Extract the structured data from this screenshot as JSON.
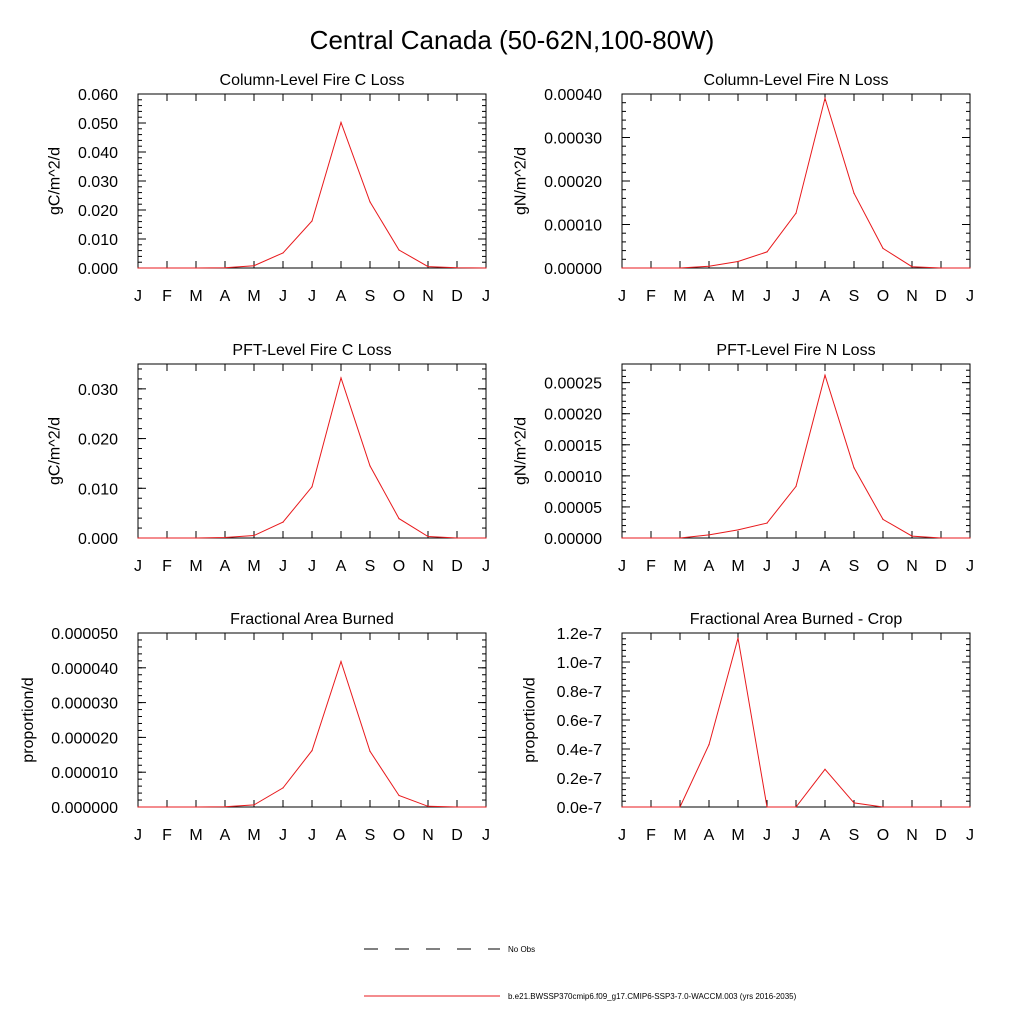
{
  "figure_title": "Central Canada (50-62N,100-80W)",
  "colors": {
    "model_line": "#e8191c",
    "obs_line": "#000000",
    "axis": "#000000"
  },
  "legend": {
    "entries": [
      {
        "label": "No Obs",
        "style": "dashed",
        "color": "#000000"
      },
      {
        "label": "b.e21.BWSSP370cmip6.f09_g17.CMIP6-SSP3-7.0-WACCM.003 (yrs 2016-2035)",
        "style": "solid",
        "color": "#e8191c"
      }
    ]
  },
  "chart_data": [
    {
      "type": "line",
      "title": "Column-Level Fire C Loss",
      "ylabel": "gC/m^2/d",
      "xlabel": "",
      "categories": [
        "J",
        "F",
        "M",
        "A",
        "M",
        "J",
        "J",
        "A",
        "S",
        "O",
        "N",
        "D",
        "J"
      ],
      "ylim": [
        0,
        0.06
      ],
      "yticks": [
        0,
        0.01,
        0.02,
        0.03,
        0.04,
        0.05,
        0.06
      ],
      "ytick_labels": [
        "0.000",
        "0.010",
        "0.020",
        "0.030",
        "0.040",
        "0.050",
        "0.060"
      ],
      "series": [
        {
          "values": [
            0.0,
            0.0,
            0.0,
            0.0001,
            0.0008,
            0.0052,
            0.0162,
            0.0502,
            0.0228,
            0.0062,
            0.0005,
            0.0001,
            0.0
          ]
        }
      ]
    },
    {
      "type": "line",
      "title": "Column-Level Fire N Loss",
      "ylabel": "gN/m^2/d",
      "xlabel": "",
      "categories": [
        "J",
        "F",
        "M",
        "A",
        "M",
        "J",
        "J",
        "A",
        "S",
        "O",
        "N",
        "D",
        "J"
      ],
      "ylim": [
        0,
        0.0004
      ],
      "yticks": [
        0,
        0.0001,
        0.0002,
        0.0003,
        0.0004
      ],
      "ytick_labels": [
        "0.00000",
        "0.00010",
        "0.00020",
        "0.00030",
        "0.00040"
      ],
      "series": [
        {
          "values": [
            0.0,
            0.0,
            0.0,
            4e-06,
            1.5e-05,
            3.7e-05,
            0.000126,
            0.00039,
            0.000172,
            4.5e-05,
            3e-06,
            0.0,
            0.0
          ]
        }
      ]
    },
    {
      "type": "line",
      "title": "PFT-Level Fire C Loss",
      "ylabel": "gC/m^2/d",
      "xlabel": "",
      "categories": [
        "J",
        "F",
        "M",
        "A",
        "M",
        "J",
        "J",
        "A",
        "S",
        "O",
        "N",
        "D",
        "J"
      ],
      "ylim": [
        0,
        0.035
      ],
      "yticks": [
        0,
        0.01,
        0.02,
        0.03
      ],
      "ytick_labels": [
        "0.000",
        "0.010",
        "0.020",
        "0.030"
      ],
      "series": [
        {
          "values": [
            0.0,
            0.0,
            0.0,
            0.0001,
            0.0005,
            0.0032,
            0.0103,
            0.0322,
            0.0145,
            0.0039,
            0.0003,
            0.0,
            0.0
          ]
        }
      ]
    },
    {
      "type": "line",
      "title": "PFT-Level Fire N Loss",
      "ylabel": "gN/m^2/d",
      "xlabel": "",
      "categories": [
        "J",
        "F",
        "M",
        "A",
        "M",
        "J",
        "J",
        "A",
        "S",
        "O",
        "N",
        "D",
        "J"
      ],
      "ylim": [
        0,
        0.00028
      ],
      "yticks": [
        0,
        5e-05,
        0.0001,
        0.00015,
        0.0002,
        0.00025
      ],
      "ytick_labels": [
        "0.00000",
        "0.00005",
        "0.00010",
        "0.00015",
        "0.00020",
        "0.00025"
      ],
      "series": [
        {
          "values": [
            0.0,
            0.0,
            0.0,
            5e-06,
            1.3e-05,
            2.4e-05,
            8.3e-05,
            0.000262,
            0.000113,
            3e-05,
            3e-06,
            0.0,
            0.0
          ]
        }
      ]
    },
    {
      "type": "line",
      "title": "Fractional Area Burned",
      "ylabel": "proportion/d",
      "xlabel": "",
      "categories": [
        "J",
        "F",
        "M",
        "A",
        "M",
        "J",
        "J",
        "A",
        "S",
        "O",
        "N",
        "D",
        "J"
      ],
      "ylim": [
        0,
        5e-05
      ],
      "yticks": [
        0,
        1e-05,
        2e-05,
        3e-05,
        4e-05,
        5e-05
      ],
      "ytick_labels": [
        "0.000000",
        "0.000010",
        "0.000020",
        "0.000030",
        "0.000040",
        "0.000050"
      ],
      "series": [
        {
          "values": [
            0.0,
            0.0,
            0.0,
            1e-07,
            6e-07,
            5.5e-06,
            1.62e-05,
            4.18e-05,
            1.6e-05,
            3.3e-06,
            2e-07,
            0.0,
            0.0
          ]
        }
      ]
    },
    {
      "type": "line",
      "title": "Fractional Area Burned - Crop",
      "ylabel": "proportion/d",
      "xlabel": "",
      "categories": [
        "J",
        "F",
        "M",
        "A",
        "M",
        "J",
        "J",
        "A",
        "S",
        "O",
        "N",
        "D",
        "J"
      ],
      "ylim": [
        0,
        1.2e-07
      ],
      "yticks": [
        0,
        2e-08,
        4e-08,
        6e-08,
        8e-08,
        1e-07,
        1.2e-07
      ],
      "ytick_labels": [
        "0.0e-7",
        "0.2e-7",
        "0.4e-7",
        "0.6e-7",
        "0.8e-7",
        "1.0e-7",
        "1.2e-7"
      ],
      "series": [
        {
          "values": [
            0.0,
            0.0,
            0.0,
            4.3e-08,
            1.165e-07,
            0.0,
            0.0,
            2.6e-08,
            2.8e-09,
            0.0,
            0.0,
            0.0,
            0.0
          ]
        }
      ]
    }
  ]
}
